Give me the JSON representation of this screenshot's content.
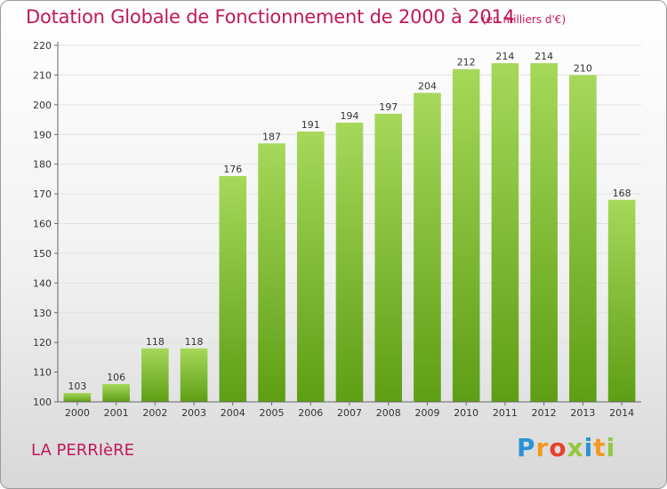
{
  "header": {
    "title": "Dotation Globale de Fonctionnement de 2000 à 2014",
    "subtitle": "(en milliers d'€)"
  },
  "footer": {
    "commune": "LA PERRIèRE",
    "logo": {
      "letters": [
        "P",
        "r",
        "o",
        "x",
        "i",
        "t",
        "i"
      ],
      "colors": [
        "#2a93d5",
        "#f39a1e",
        "#e8412c",
        "#93c83e",
        "#2a93d5",
        "#f39a1e",
        "#93c83e"
      ]
    }
  },
  "chart_data": {
    "type": "bar",
    "title": "Dotation Globale de Fonctionnement de 2000 à 2014",
    "subtitle": "(en milliers d'€)",
    "categories": [
      "2000",
      "2001",
      "2002",
      "2003",
      "2004",
      "2005",
      "2006",
      "2007",
      "2008",
      "2009",
      "2010",
      "2011",
      "2012",
      "2013",
      "2014"
    ],
    "values": [
      103,
      106,
      118,
      118,
      176,
      187,
      191,
      194,
      197,
      204,
      212,
      214,
      214,
      210,
      168
    ],
    "ylim": [
      100,
      220
    ],
    "yticks": [
      100,
      110,
      120,
      130,
      140,
      150,
      160,
      170,
      180,
      190,
      200,
      210,
      220
    ],
    "grid": true,
    "colors": {
      "bar_top": "#a6d85a",
      "bar_bottom": "#5e9e14",
      "grid": "#e2e2e2",
      "axis": "#666666",
      "text": "#333333"
    }
  }
}
